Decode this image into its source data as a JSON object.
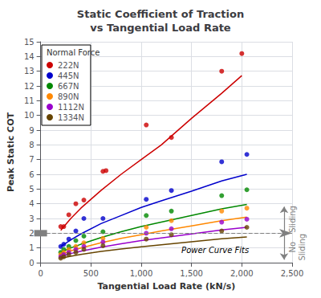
{
  "chart_data": {
    "type": "scatter",
    "title": "Static Coefficient of Traction\nvs Tangential Load Rate",
    "x_label": "Tangential Load Rate (kN/s)",
    "y_label": "Peak Static COT",
    "xlim": [
      0,
      2500
    ],
    "ylim": [
      0,
      15
    ],
    "xticks": [
      0,
      500,
      1000,
      1500,
      2000,
      2500
    ],
    "yticks": [
      0,
      1,
      2,
      3,
      4,
      5,
      6,
      7,
      8,
      9,
      10,
      11,
      12,
      13,
      14,
      15
    ],
    "grid": true,
    "legend": "upper left",
    "legend_title": "Normal Force",
    "marker": "circle",
    "series": [
      {
        "name": "222N",
        "color": "#cc0000",
        "x": [
          200,
          230,
          280,
          350,
          430,
          620,
          650,
          1050,
          1300,
          1800,
          2000
        ],
        "values": [
          2.45,
          2.45,
          3.25,
          4.0,
          4.25,
          6.2,
          6.25,
          9.35,
          8.5,
          13.0,
          14.2
        ],
        "fit_x": [
          200,
          300,
          400,
          600,
          800,
          1000,
          1200,
          1500,
          1800,
          2000
        ],
        "fit_values": [
          2.2,
          3.0,
          3.7,
          4.9,
          6.0,
          7.0,
          8.0,
          9.8,
          11.5,
          12.7
        ]
      },
      {
        "name": "445N",
        "color": "#0000cc",
        "x": [
          200,
          230,
          280,
          350,
          430,
          620,
          1050,
          1300,
          1800,
          2050
        ],
        "values": [
          1.1,
          1.25,
          1.6,
          2.15,
          3.0,
          3.0,
          4.3,
          4.9,
          6.85,
          7.35
        ],
        "fit_x": [
          200,
          300,
          400,
          600,
          800,
          1000,
          1200,
          1500,
          1800,
          2050
        ],
        "fit_values": [
          1.1,
          1.55,
          1.95,
          2.65,
          3.2,
          3.75,
          4.2,
          4.85,
          5.55,
          6.0
        ]
      },
      {
        "name": "667N",
        "color": "#008800",
        "x": [
          200,
          230,
          280,
          350,
          430,
          620,
          1050,
          1300,
          1800,
          2050
        ],
        "values": [
          0.7,
          0.9,
          1.1,
          1.5,
          1.8,
          2.1,
          3.2,
          3.5,
          4.55,
          4.95
        ],
        "fit_x": [
          200,
          300,
          400,
          600,
          800,
          1000,
          1200,
          1500,
          1800,
          2050
        ],
        "fit_values": [
          0.7,
          1.0,
          1.25,
          1.7,
          2.1,
          2.45,
          2.75,
          3.2,
          3.65,
          3.95
        ]
      },
      {
        "name": "890N",
        "color": "#ff8800",
        "x": [
          200,
          230,
          280,
          350,
          430,
          620,
          1050,
          1300,
          1800,
          2050
        ],
        "values": [
          0.55,
          0.7,
          0.9,
          1.1,
          1.35,
          1.65,
          2.4,
          2.85,
          3.5,
          3.7
        ],
        "fit_x": [
          200,
          300,
          400,
          600,
          800,
          1000,
          1200,
          1500,
          1800,
          2050
        ],
        "fit_values": [
          0.55,
          0.8,
          1.0,
          1.35,
          1.65,
          1.9,
          2.15,
          2.5,
          2.85,
          3.1
        ]
      },
      {
        "name": "1112N",
        "color": "#9900cc",
        "x": [
          200,
          230,
          280,
          350,
          430,
          620,
          1050,
          1300,
          1800,
          2050
        ],
        "values": [
          0.4,
          0.55,
          0.7,
          0.9,
          1.1,
          1.4,
          2.0,
          2.3,
          2.75,
          2.95
        ],
        "fit_x": [
          200,
          300,
          400,
          600,
          800,
          1000,
          1200,
          1500,
          1800,
          2050
        ],
        "fit_values": [
          0.42,
          0.62,
          0.78,
          1.05,
          1.28,
          1.5,
          1.68,
          1.95,
          2.22,
          2.4
        ]
      },
      {
        "name": "1334N",
        "color": "#664400",
        "x": [
          200,
          230,
          280,
          350,
          430,
          620,
          1050,
          1300,
          1800,
          2050
        ],
        "values": [
          0.3,
          0.4,
          0.55,
          0.7,
          0.9,
          1.15,
          1.6,
          1.9,
          2.15,
          2.4
        ],
        "fit_x": [
          200,
          300,
          400,
          600,
          800,
          1000,
          1200,
          1500,
          1800,
          2050
        ],
        "fit_values": [
          0.3,
          0.44,
          0.56,
          0.76,
          0.93,
          1.08,
          1.22,
          1.42,
          1.62,
          1.75
        ]
      }
    ],
    "reference_line": {
      "y": 2.0,
      "line_style": "dashed"
    },
    "annotation": {
      "text": "Power Curve Fits",
      "x": 1400,
      "y": 0.55
    },
    "side_labels": [
      {
        "text": "Sliding",
        "x": 2460,
        "y": 2.95
      },
      {
        "text": "No\nSliding",
        "x": 2460,
        "y": 1.05
      }
    ],
    "arrows": [
      {
        "x": 2420,
        "from": 2.1,
        "to": 3.8
      },
      {
        "x": 2420,
        "from": 1.9,
        "to": 0.2
      }
    ]
  }
}
